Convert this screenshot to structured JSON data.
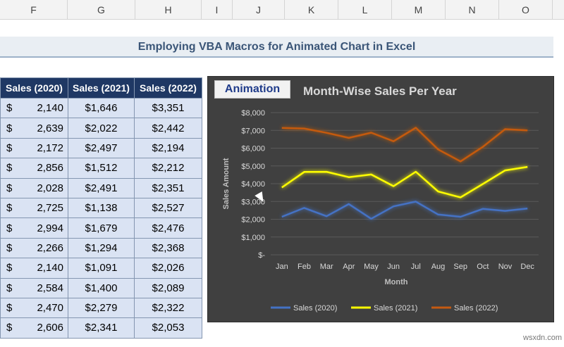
{
  "columns": [
    "F",
    "G",
    "H",
    "I",
    "J",
    "K",
    "L",
    "M",
    "N",
    "O"
  ],
  "sheet_title": "Employing VBA Macros for Animated Chart in Excel",
  "table": {
    "headers": [
      "Sales (2020)",
      "Sales (2021)",
      "Sales (2022)"
    ],
    "currency_symbol": "$",
    "rows": [
      {
        "s2020": "2,140",
        "s2021": "$1,646",
        "s2022": "$3,351"
      },
      {
        "s2020": "2,639",
        "s2021": "$2,022",
        "s2022": "$2,442"
      },
      {
        "s2020": "2,172",
        "s2021": "$2,497",
        "s2022": "$2,194"
      },
      {
        "s2020": "2,856",
        "s2021": "$1,512",
        "s2022": "$2,212"
      },
      {
        "s2020": "2,028",
        "s2021": "$2,491",
        "s2022": "$2,351"
      },
      {
        "s2020": "2,725",
        "s2021": "$1,138",
        "s2022": "$2,527"
      },
      {
        "s2020": "2,994",
        "s2021": "$1,679",
        "s2022": "$2,476"
      },
      {
        "s2020": "2,266",
        "s2021": "$1,294",
        "s2022": "$2,368"
      },
      {
        "s2020": "2,140",
        "s2021": "$1,091",
        "s2022": "$2,026"
      },
      {
        "s2020": "2,584",
        "s2021": "$1,400",
        "s2022": "$2,089"
      },
      {
        "s2020": "2,470",
        "s2021": "$2,279",
        "s2022": "$2,322"
      },
      {
        "s2020": "2,606",
        "s2021": "$2,341",
        "s2022": "$2,053"
      }
    ]
  },
  "animation_button": "Animation",
  "watermark": "wsxdn.com",
  "chart_data": {
    "type": "line",
    "title": "Month-Wise Sales Per Year",
    "ylabel": "Sales Amount",
    "xlabel": "Month",
    "ylim": [
      0,
      8000
    ],
    "y_ticks": [
      {
        "value": 0,
        "label": "$-"
      },
      {
        "value": 1000,
        "label": "$1,000"
      },
      {
        "value": 2000,
        "label": "$2,000"
      },
      {
        "value": 3000,
        "label": "$3,000"
      },
      {
        "value": 4000,
        "label": "$4,000"
      },
      {
        "value": 5000,
        "label": "$5,000"
      },
      {
        "value": 6000,
        "label": "$6,000"
      },
      {
        "value": 7000,
        "label": "$7,000"
      },
      {
        "value": 8000,
        "label": "$8,000"
      }
    ],
    "categories": [
      "Jan",
      "Feb",
      "Mar",
      "Apr",
      "May",
      "Jun",
      "Jul",
      "Aug",
      "Sep",
      "Oct",
      "Nov",
      "Dec"
    ],
    "grid": true,
    "legend": "bottom",
    "series": [
      {
        "name": "Sales (2020)",
        "color": "#4472c4",
        "values": [
          2140,
          2639,
          2172,
          2856,
          2028,
          2725,
          2994,
          2266,
          2140,
          2584,
          2470,
          2606
        ]
      },
      {
        "name": "Sales (2021)",
        "color": "#ffff00",
        "values": [
          3786,
          4661,
          4669,
          4368,
          4519,
          3863,
          4673,
          3560,
          3231,
          3984,
          4749,
          4947
        ]
      },
      {
        "name": "Sales (2022)",
        "color": "#c55a11",
        "values": [
          7137,
          7103,
          6863,
          6580,
          6870,
          6390,
          7149,
          5928,
          5257,
          6073,
          7071,
          7000
        ]
      }
    ]
  }
}
